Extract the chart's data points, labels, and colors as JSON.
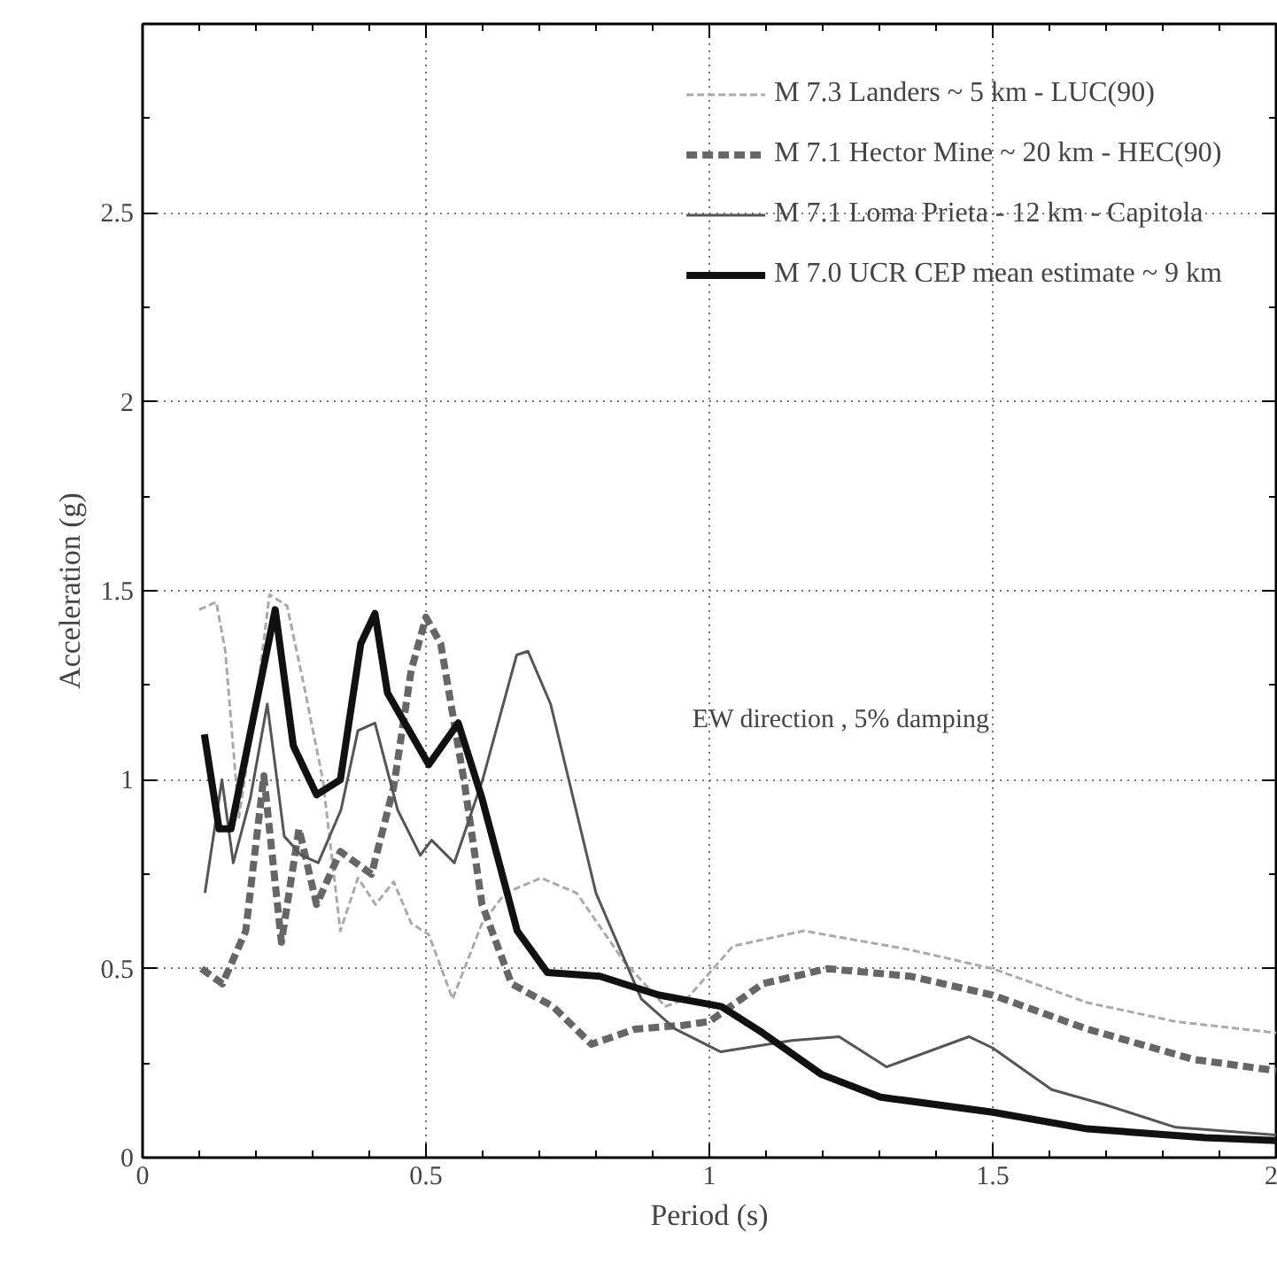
{
  "chart_data": {
    "type": "line",
    "xlabel": "Period (s)",
    "ylabel": "Acceleration (g)",
    "xlim": [
      0,
      2
    ],
    "ylim": [
      0,
      3
    ],
    "xticks": [
      0,
      0.5,
      1,
      1.5,
      2
    ],
    "yticks": [
      0,
      0.5,
      1,
      1.5,
      2,
      2.5
    ],
    "grid": true,
    "legend": "top right",
    "marker": "none",
    "annotations": [
      "EW direction ,  5% damping"
    ],
    "series": [
      {
        "name": "M 7.3 Landers ~ 5 km - LUC(90)",
        "color": "#aaaaaa",
        "line_style": "dashed",
        "x": [
          0.1,
          0.13,
          0.146,
          0.17,
          0.2,
          0.224,
          0.255,
          0.286,
          0.318,
          0.349,
          0.38,
          0.411,
          0.443,
          0.474,
          0.505,
          0.547,
          0.599,
          0.64,
          0.703,
          0.766,
          0.849,
          0.922,
          0.96,
          1.042,
          1.167,
          1.354,
          1.5,
          1.667,
          1.823,
          2.0
        ],
        "values": [
          1.45,
          1.47,
          1.34,
          0.9,
          1.2,
          1.49,
          1.46,
          1.24,
          1.0,
          0.6,
          0.74,
          0.67,
          0.73,
          0.62,
          0.59,
          0.42,
          0.62,
          0.7,
          0.74,
          0.7,
          0.52,
          0.4,
          0.42,
          0.56,
          0.6,
          0.55,
          0.5,
          0.41,
          0.36,
          0.33
        ]
      },
      {
        "name": "M 7.1 Hector Mine ~ 20 km - HEC(90)",
        "color": "#666666",
        "line_style": "dashed",
        "x": [
          0.104,
          0.141,
          0.182,
          0.214,
          0.245,
          0.276,
          0.307,
          0.349,
          0.404,
          0.443,
          0.474,
          0.5,
          0.526,
          0.568,
          0.599,
          0.651,
          0.724,
          0.792,
          0.869,
          0.953,
          1.0,
          1.094,
          1.208,
          1.354,
          1.5,
          1.667,
          1.854,
          2.0
        ],
        "values": [
          0.5,
          0.46,
          0.6,
          1.01,
          0.57,
          0.87,
          0.67,
          0.81,
          0.75,
          0.98,
          1.29,
          1.43,
          1.36,
          0.99,
          0.67,
          0.46,
          0.4,
          0.3,
          0.34,
          0.35,
          0.36,
          0.46,
          0.5,
          0.48,
          0.43,
          0.34,
          0.26,
          0.23
        ]
      },
      {
        "name": "M 7.1 Loma Prieta - 12 km - Capitola",
        "color": "#555555",
        "line_style": "solid",
        "x": [
          0.11,
          0.14,
          0.16,
          0.19,
          0.22,
          0.25,
          0.28,
          0.31,
          0.35,
          0.38,
          0.41,
          0.45,
          0.49,
          0.51,
          0.55,
          0.6,
          0.66,
          0.68,
          0.72,
          0.8,
          0.88,
          0.94,
          1.02,
          1.146,
          1.229,
          1.3125,
          1.458,
          1.5,
          1.604,
          1.698,
          1.823,
          2.0
        ],
        "values": [
          0.7,
          1.0,
          0.78,
          0.95,
          1.2,
          0.85,
          0.8,
          0.78,
          0.92,
          1.13,
          1.15,
          0.92,
          0.8,
          0.84,
          0.78,
          1.0,
          1.33,
          1.34,
          1.2,
          0.7,
          0.42,
          0.34,
          0.28,
          0.31,
          0.32,
          0.24,
          0.32,
          0.29,
          0.18,
          0.14,
          0.08,
          0.06
        ]
      },
      {
        "name": "M 7.0 UCR CEP mean estimate ~ 9 km",
        "color": "#111111",
        "line_style": "solid",
        "x": [
          0.109,
          0.135,
          0.156,
          0.234,
          0.266,
          0.307,
          0.349,
          0.385,
          0.41,
          0.432,
          0.505,
          0.557,
          0.599,
          0.661,
          0.714,
          0.807,
          0.911,
          1.021,
          1.094,
          1.198,
          1.302,
          1.5,
          1.667,
          1.875,
          2.0
        ],
        "values": [
          1.12,
          0.87,
          0.87,
          1.45,
          1.09,
          0.96,
          1.0,
          1.36,
          1.44,
          1.23,
          1.04,
          1.15,
          0.95,
          0.6,
          0.49,
          0.48,
          0.43,
          0.4,
          0.33,
          0.22,
          0.16,
          0.12,
          0.076,
          0.053,
          0.045
        ]
      }
    ]
  }
}
